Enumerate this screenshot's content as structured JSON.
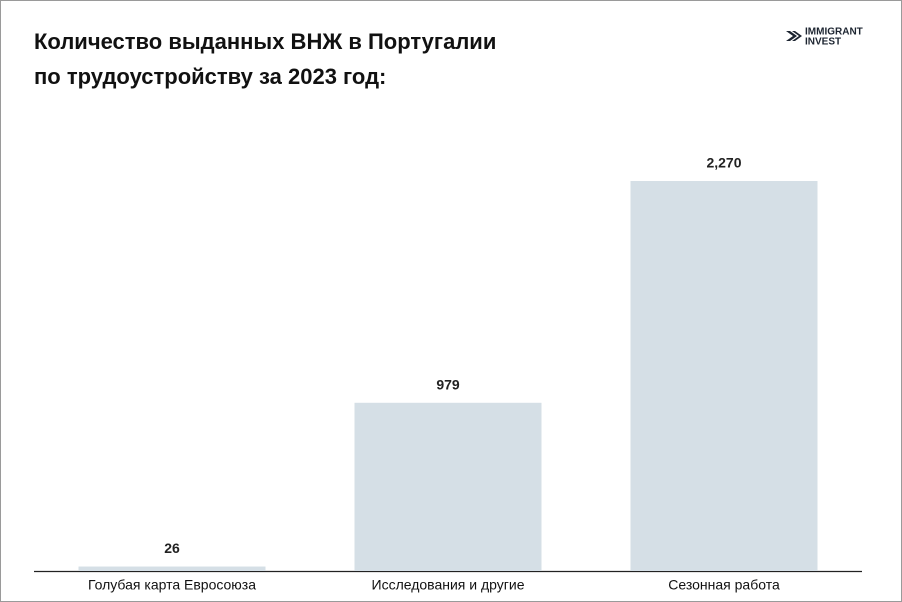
{
  "chart_data": {
    "type": "bar",
    "title_lines": [
      "Количество выданных ВНЖ в Португалии",
      "по трудоустройству за 2023 год:"
    ],
    "brand_lines": [
      "IMMIGRANT",
      "INVEST"
    ],
    "categories": [
      "Голубая карта Евросоюза",
      "Исследования и другие",
      "Сезонная работа"
    ],
    "values": [
      26,
      979,
      2270
    ],
    "value_labels": [
      "26",
      "979",
      "2,270"
    ],
    "color": "#d5dfe6"
  }
}
